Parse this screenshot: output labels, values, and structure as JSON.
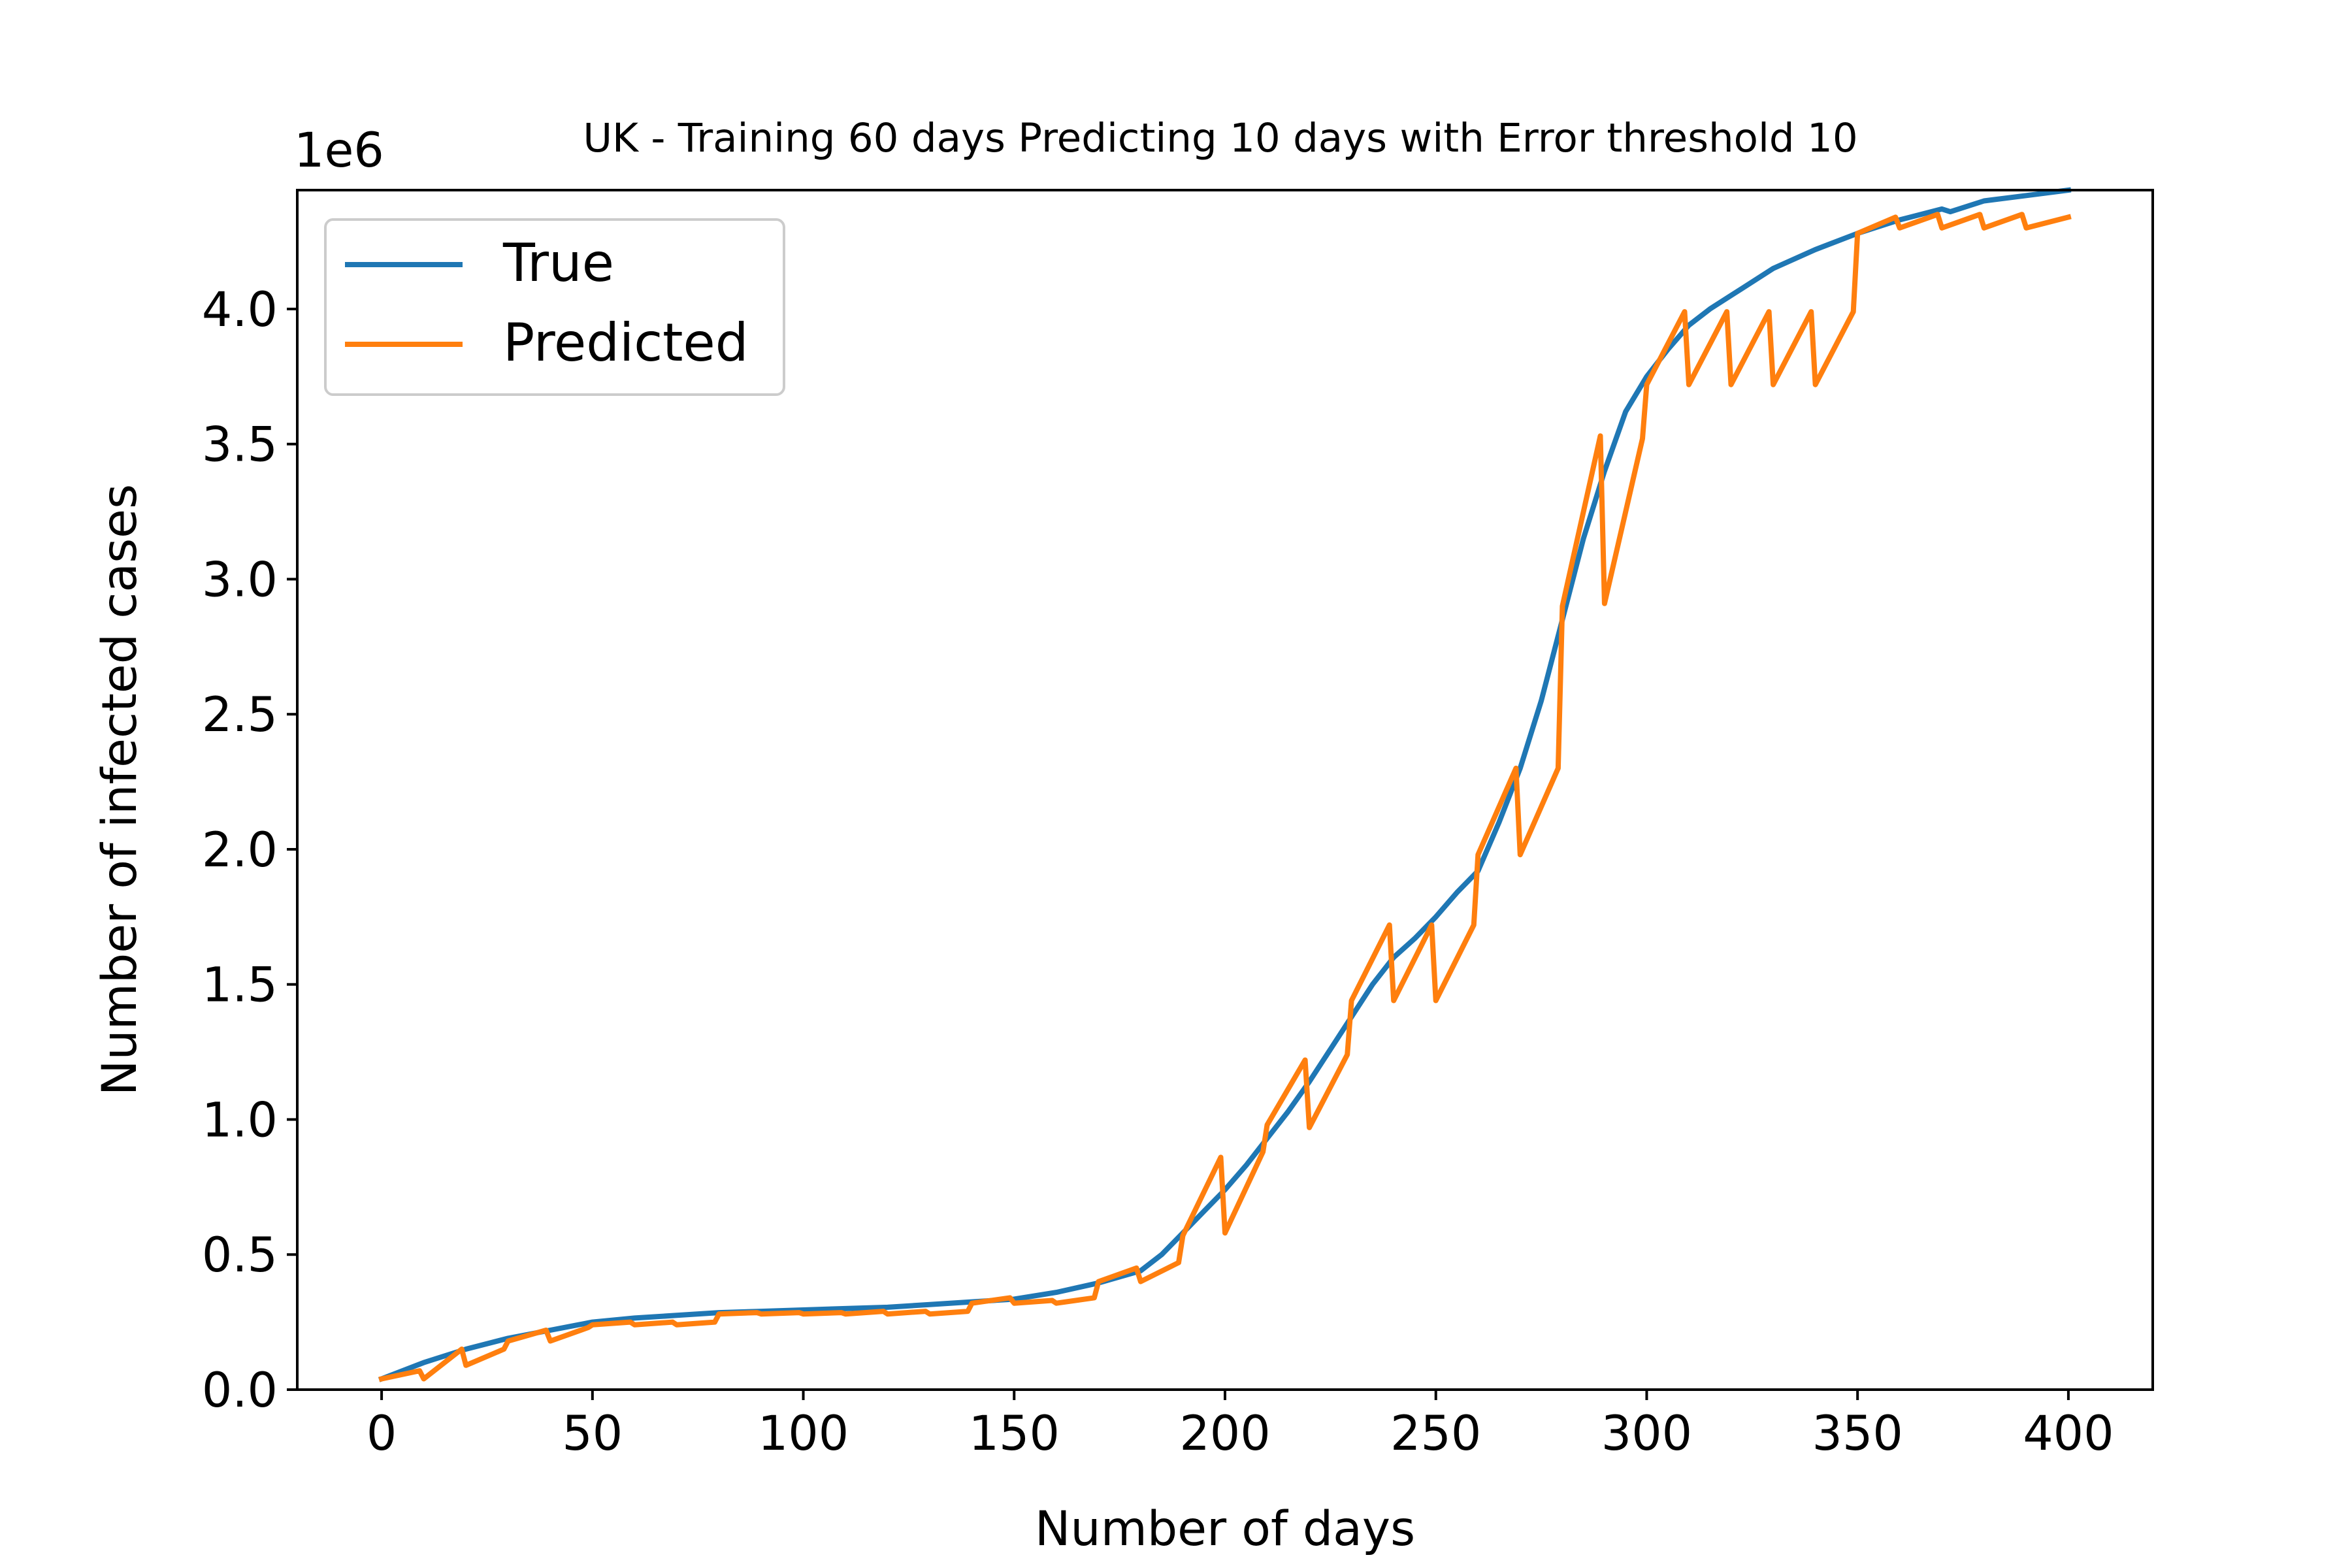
{
  "chart_data": {
    "type": "line",
    "title": "UK - Training 60 days Predicting 10 days with Error threshold 10",
    "xlabel": "Number of days",
    "ylabel": "Number of infected cases",
    "y_offset_label": "1e6",
    "xlim": [
      -20,
      420
    ],
    "ylim": [
      0,
      4.44
    ],
    "x_ticks": [
      0,
      50,
      100,
      150,
      200,
      250,
      300,
      350,
      400
    ],
    "x_tick_labels": [
      "0",
      "50",
      "100",
      "150",
      "200",
      "250",
      "300",
      "350",
      "400"
    ],
    "y_ticks": [
      0.0,
      0.5,
      1.0,
      1.5,
      2.0,
      2.5,
      3.0,
      3.5,
      4.0
    ],
    "y_tick_labels": [
      "0.0",
      "0.5",
      "1.0",
      "1.5",
      "2.0",
      "2.5",
      "3.0",
      "3.5",
      "4.0"
    ],
    "grid": false,
    "legend_position": "top-left",
    "series": [
      {
        "name": "True",
        "color": "#1f77b4",
        "x": [
          0,
          10,
          20,
          30,
          40,
          50,
          60,
          70,
          80,
          90,
          100,
          110,
          120,
          130,
          140,
          150,
          160,
          170,
          180,
          185,
          190,
          195,
          200,
          205,
          210,
          215,
          220,
          225,
          230,
          235,
          240,
          245,
          250,
          255,
          260,
          265,
          270,
          275,
          280,
          285,
          290,
          295,
          300,
          305,
          310,
          315,
          320,
          330,
          340,
          350,
          360,
          370,
          372,
          380,
          390,
          400
        ],
        "y": [
          0.04,
          0.1,
          0.15,
          0.19,
          0.22,
          0.25,
          0.265,
          0.275,
          0.285,
          0.29,
          0.295,
          0.3,
          0.305,
          0.315,
          0.325,
          0.335,
          0.36,
          0.395,
          0.44,
          0.5,
          0.58,
          0.66,
          0.74,
          0.83,
          0.93,
          1.03,
          1.14,
          1.26,
          1.38,
          1.5,
          1.6,
          1.67,
          1.75,
          1.84,
          1.92,
          2.1,
          2.3,
          2.55,
          2.85,
          3.15,
          3.4,
          3.62,
          3.75,
          3.85,
          3.94,
          4.0,
          4.05,
          4.15,
          4.22,
          4.28,
          4.33,
          4.37,
          4.36,
          4.4,
          4.42,
          4.44
        ]
      },
      {
        "name": "Predicted",
        "color": "#ff7f0e",
        "x": [
          0,
          9,
          10,
          19,
          20,
          29,
          30,
          39,
          40,
          49,
          50,
          59,
          60,
          69,
          70,
          79,
          80,
          89,
          90,
          99,
          100,
          109,
          110,
          119,
          120,
          129,
          130,
          139,
          140,
          149,
          150,
          159,
          160,
          169,
          170,
          179,
          180,
          189,
          190,
          199,
          200,
          209,
          210,
          219,
          220,
          229,
          230,
          239,
          240,
          249,
          250,
          259,
          260,
          269,
          270,
          279,
          280,
          289,
          290,
          299,
          300,
          309,
          310,
          319,
          320,
          329,
          330,
          339,
          340,
          349,
          350,
          359,
          360,
          369,
          370,
          379,
          380,
          389,
          390,
          400
        ],
        "y": [
          0.04,
          0.07,
          0.04,
          0.15,
          0.09,
          0.15,
          0.18,
          0.22,
          0.18,
          0.23,
          0.24,
          0.25,
          0.24,
          0.25,
          0.24,
          0.25,
          0.28,
          0.285,
          0.28,
          0.285,
          0.28,
          0.285,
          0.28,
          0.29,
          0.28,
          0.29,
          0.28,
          0.29,
          0.32,
          0.34,
          0.32,
          0.33,
          0.32,
          0.34,
          0.4,
          0.45,
          0.4,
          0.47,
          0.57,
          0.86,
          0.58,
          0.88,
          0.98,
          1.22,
          0.97,
          1.24,
          1.44,
          1.72,
          1.44,
          1.72,
          1.44,
          1.72,
          1.98,
          2.3,
          1.98,
          2.3,
          2.9,
          3.53,
          2.91,
          3.52,
          3.72,
          3.99,
          3.72,
          3.99,
          3.72,
          3.99,
          3.72,
          3.99,
          3.72,
          3.99,
          4.28,
          4.34,
          4.3,
          4.35,
          4.3,
          4.35,
          4.3,
          4.35,
          4.3,
          4.34
        ]
      }
    ]
  }
}
